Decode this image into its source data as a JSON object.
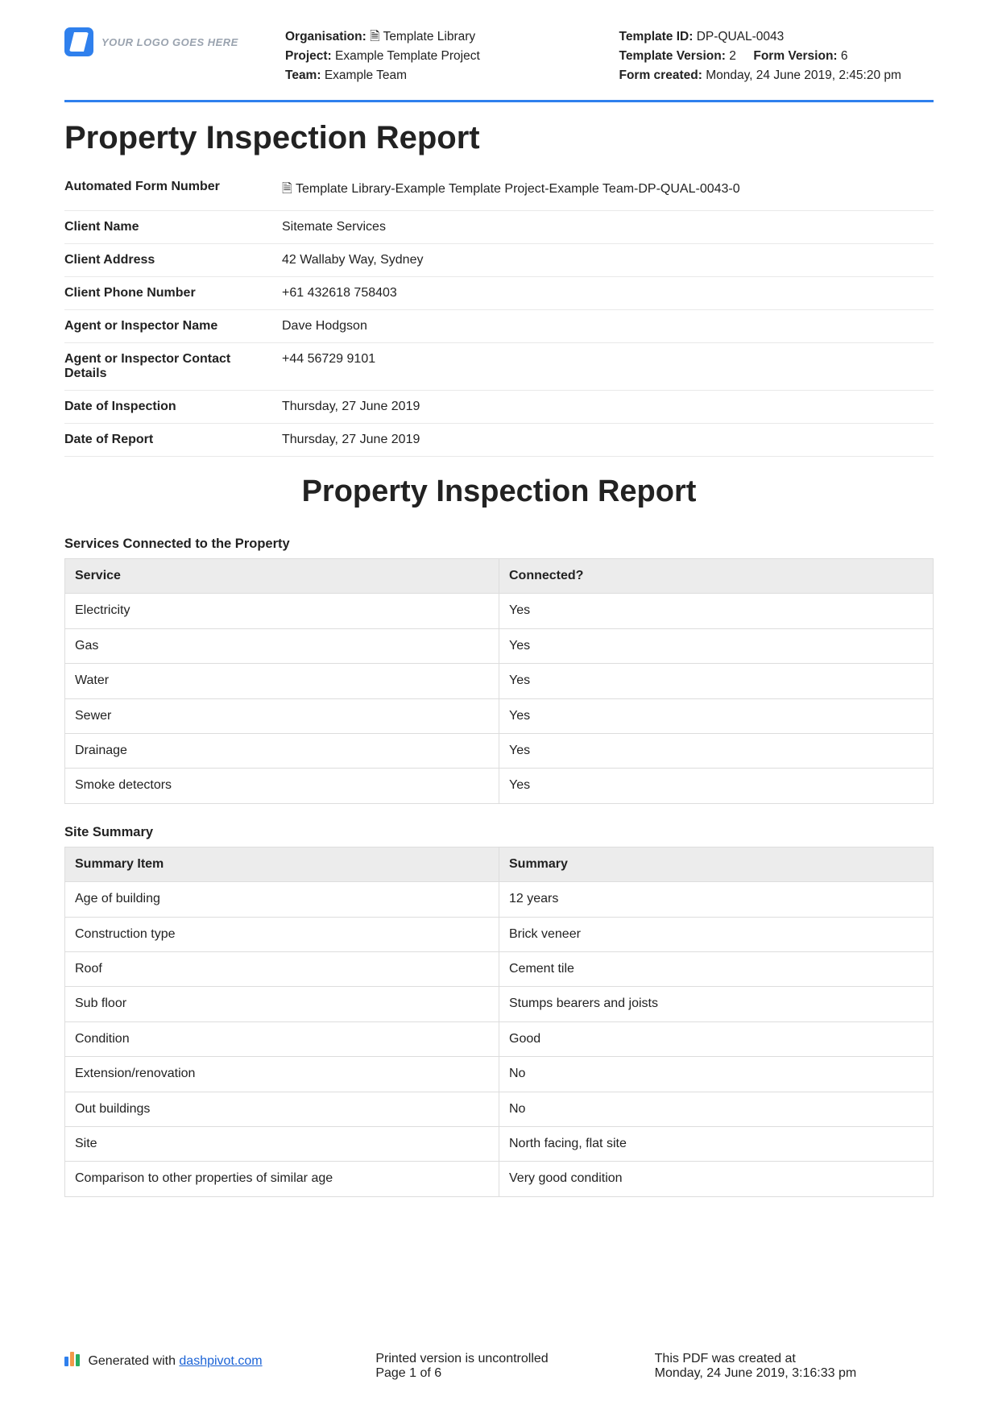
{
  "logo_text": "YOUR LOGO GOES HERE",
  "header": {
    "left": {
      "org_label": "Organisation:",
      "org_value": "🗎 Template Library",
      "proj_label": "Project:",
      "proj_value": "Example Template Project",
      "team_label": "Team:",
      "team_value": "Example Team"
    },
    "right": {
      "tid_label": "Template ID:",
      "tid_value": "DP-QUAL-0043",
      "tver_label": "Template Version:",
      "tver_value": "2",
      "fver_label": "Form Version:",
      "fver_value": "6",
      "created_label": "Form created:",
      "created_value": "Monday, 24 June 2019, 2:45:20 pm"
    }
  },
  "title": "Property Inspection Report",
  "info": [
    {
      "label": "Automated Form Number",
      "value": "🗎 Template Library-Example Template Project-Example Team-DP-QUAL-0043-0"
    },
    {
      "label": "Client Name",
      "value": "Sitemate Services"
    },
    {
      "label": "Client Address",
      "value": "42 Wallaby Way, Sydney"
    },
    {
      "label": "Client Phone Number",
      "value": "+61 432618 758403"
    },
    {
      "label": "Agent or Inspector Name",
      "value": "Dave Hodgson"
    },
    {
      "label": "Agent or Inspector Contact Details",
      "value": "+44 56729 9101"
    },
    {
      "label": "Date of Inspection",
      "value": "Thursday, 27 June 2019"
    },
    {
      "label": "Date of Report",
      "value": "Thursday, 27 June 2019"
    }
  ],
  "big_heading": "Property Inspection Report",
  "services": {
    "title": "Services Connected to the Property",
    "cols": [
      "Service",
      "Connected?"
    ],
    "rows": [
      [
        "Electricity",
        "Yes"
      ],
      [
        "Gas",
        "Yes"
      ],
      [
        "Water",
        "Yes"
      ],
      [
        "Sewer",
        "Yes"
      ],
      [
        "Drainage",
        "Yes"
      ],
      [
        "Smoke detectors",
        "Yes"
      ]
    ]
  },
  "summary": {
    "title": "Site Summary",
    "cols": [
      "Summary Item",
      "Summary"
    ],
    "rows": [
      [
        "Age of building",
        "12 years"
      ],
      [
        "Construction type",
        "Brick veneer"
      ],
      [
        "Roof",
        "Cement tile"
      ],
      [
        "Sub floor",
        "Stumps bearers and joists"
      ],
      [
        "Condition",
        "Good"
      ],
      [
        "Extension/renovation",
        "No"
      ],
      [
        "Out buildings",
        "No"
      ],
      [
        "Site",
        "North facing, flat site"
      ],
      [
        "Comparison to other properties of similar age",
        "Very good condition"
      ]
    ]
  },
  "footer": {
    "gen_prefix": "Generated with ",
    "gen_link": "dashpivot.com",
    "uncontrolled": "Printed version is uncontrolled",
    "page": "Page 1 of 6",
    "created_label": "This PDF was created at",
    "created_value": "Monday, 24 June 2019, 3:16:33 pm"
  }
}
